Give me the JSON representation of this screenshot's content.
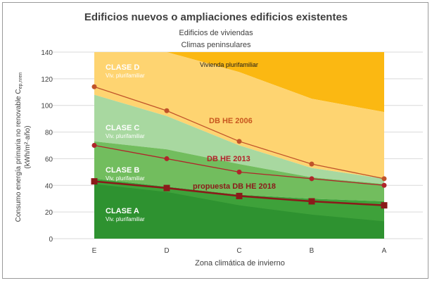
{
  "chart_data": {
    "type": "area",
    "title": "Edificios nuevos o ampliaciones edificios existentes",
    "subtitle_1": "Edificios de viviendas",
    "subtitle_2": "Climas peninsulares",
    "xlabel": "Zona climática de invierno",
    "ylabel_line1": "Consumo energía primaria no renovable C",
    "ylabel_sub": "ep,nren",
    "ylabel_line2": "(kWh/m²·año)",
    "categories": [
      "E",
      "D",
      "C",
      "B",
      "A"
    ],
    "ylim": [
      0,
      140
    ],
    "yticks": [
      0,
      20,
      40,
      60,
      80,
      100,
      120,
      140
    ],
    "grid": true,
    "bands": [
      {
        "class_label": "CLASE A",
        "sub_label": "Viv. plurifamiliar",
        "upper": [
          45,
          39,
          33,
          30,
          28
        ],
        "color": "#3ea13a"
      },
      {
        "class_label": "CLASE B",
        "sub_label": "Viv. plurifamiliar",
        "upper": [
          73,
          67,
          56,
          46,
          41
        ],
        "color": "#72bd5e"
      },
      {
        "class_label": "CLASE C",
        "sub_label": "Viv. plurifamiliar",
        "upper": [
          108,
          92,
          70,
          53,
          45
        ],
        "color": "#a8d8a0"
      },
      {
        "class_label": "CLASE D",
        "sub_label": "Viv. plurifamiliar",
        "upper": [
          140,
          140,
          125,
          105,
          95
        ],
        "color": "#fed471"
      },
      {
        "class_label": "",
        "sub_label": "Vivienda plurifamiliar",
        "upper": [
          140,
          140,
          140,
          140,
          140
        ],
        "color": "#fbb812"
      }
    ],
    "inner_band": {
      "upper": [
        41,
        35,
        25,
        18,
        13
      ],
      "color": "#2e9230"
    },
    "series": [
      {
        "name": "DB HE 2006",
        "values": [
          114,
          96,
          73,
          56,
          45
        ],
        "color": "#c0532a",
        "label_color": "#c8571f"
      },
      {
        "name": "DB HE 2013",
        "values": [
          70,
          60,
          50,
          45,
          40
        ],
        "color": "#b0252a",
        "label_color": "#b4212a"
      },
      {
        "name": "propuesta DB HE 2018",
        "values": [
          43,
          38,
          32,
          28,
          25
        ],
        "color": "#8b1a1a",
        "label_color": "#8b1a1a"
      }
    ]
  }
}
